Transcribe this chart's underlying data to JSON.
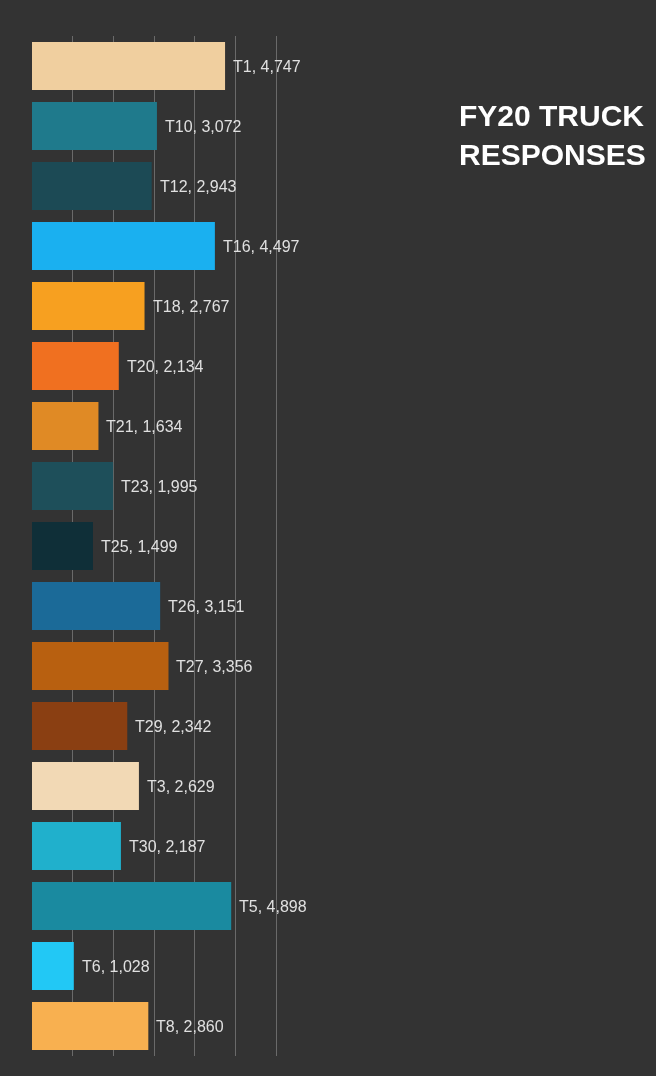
{
  "chart_data": {
    "type": "bar",
    "orientation": "horizontal",
    "title": "FY20 TRUCK RESPONSES",
    "categories": [
      null,
      null,
      null,
      null,
      null,
      null,
      null,
      null,
      null,
      null,
      null,
      null,
      null,
      null,
      null,
      null,
      null
    ],
    "values": [
      4747,
      3072,
      2943,
      4497,
      2767,
      2134,
      1634,
      1995,
      1499,
      3151,
      3356,
      2342,
      2629,
      2187,
      4898,
      1028,
      2860
    ],
    "value_labels": [
      "T1, 4,747",
      "T10, 3,072",
      "T12, 2,943",
      "T16, 4,497",
      "T18, 2,767",
      "T20, 2,134",
      "T21, 1,634",
      "T23, 1,995",
      "T25, 1,499",
      "T26, 3,151",
      "T27, 3,356",
      "T29, 2,342",
      "T3, 2,629",
      "T30, 2,187",
      "T5, 4,898",
      "T6, 1,028",
      "T8, 2,860"
    ],
    "colors": [
      "#f0cf9f",
      "#1f7a8c",
      "#1c4a55",
      "#1ab0f0",
      "#f7a020",
      "#f07020",
      "#e08a25",
      "#1e4f5a",
      "#0f2f38",
      "#1b6a98",
      "#b86010",
      "#8a3f12",
      "#f2d9b5",
      "#20b0cc",
      "#1a8aa0",
      "#22c8f5",
      "#f8b050"
    ],
    "grid": "x",
    "tick_labels": false
  }
}
